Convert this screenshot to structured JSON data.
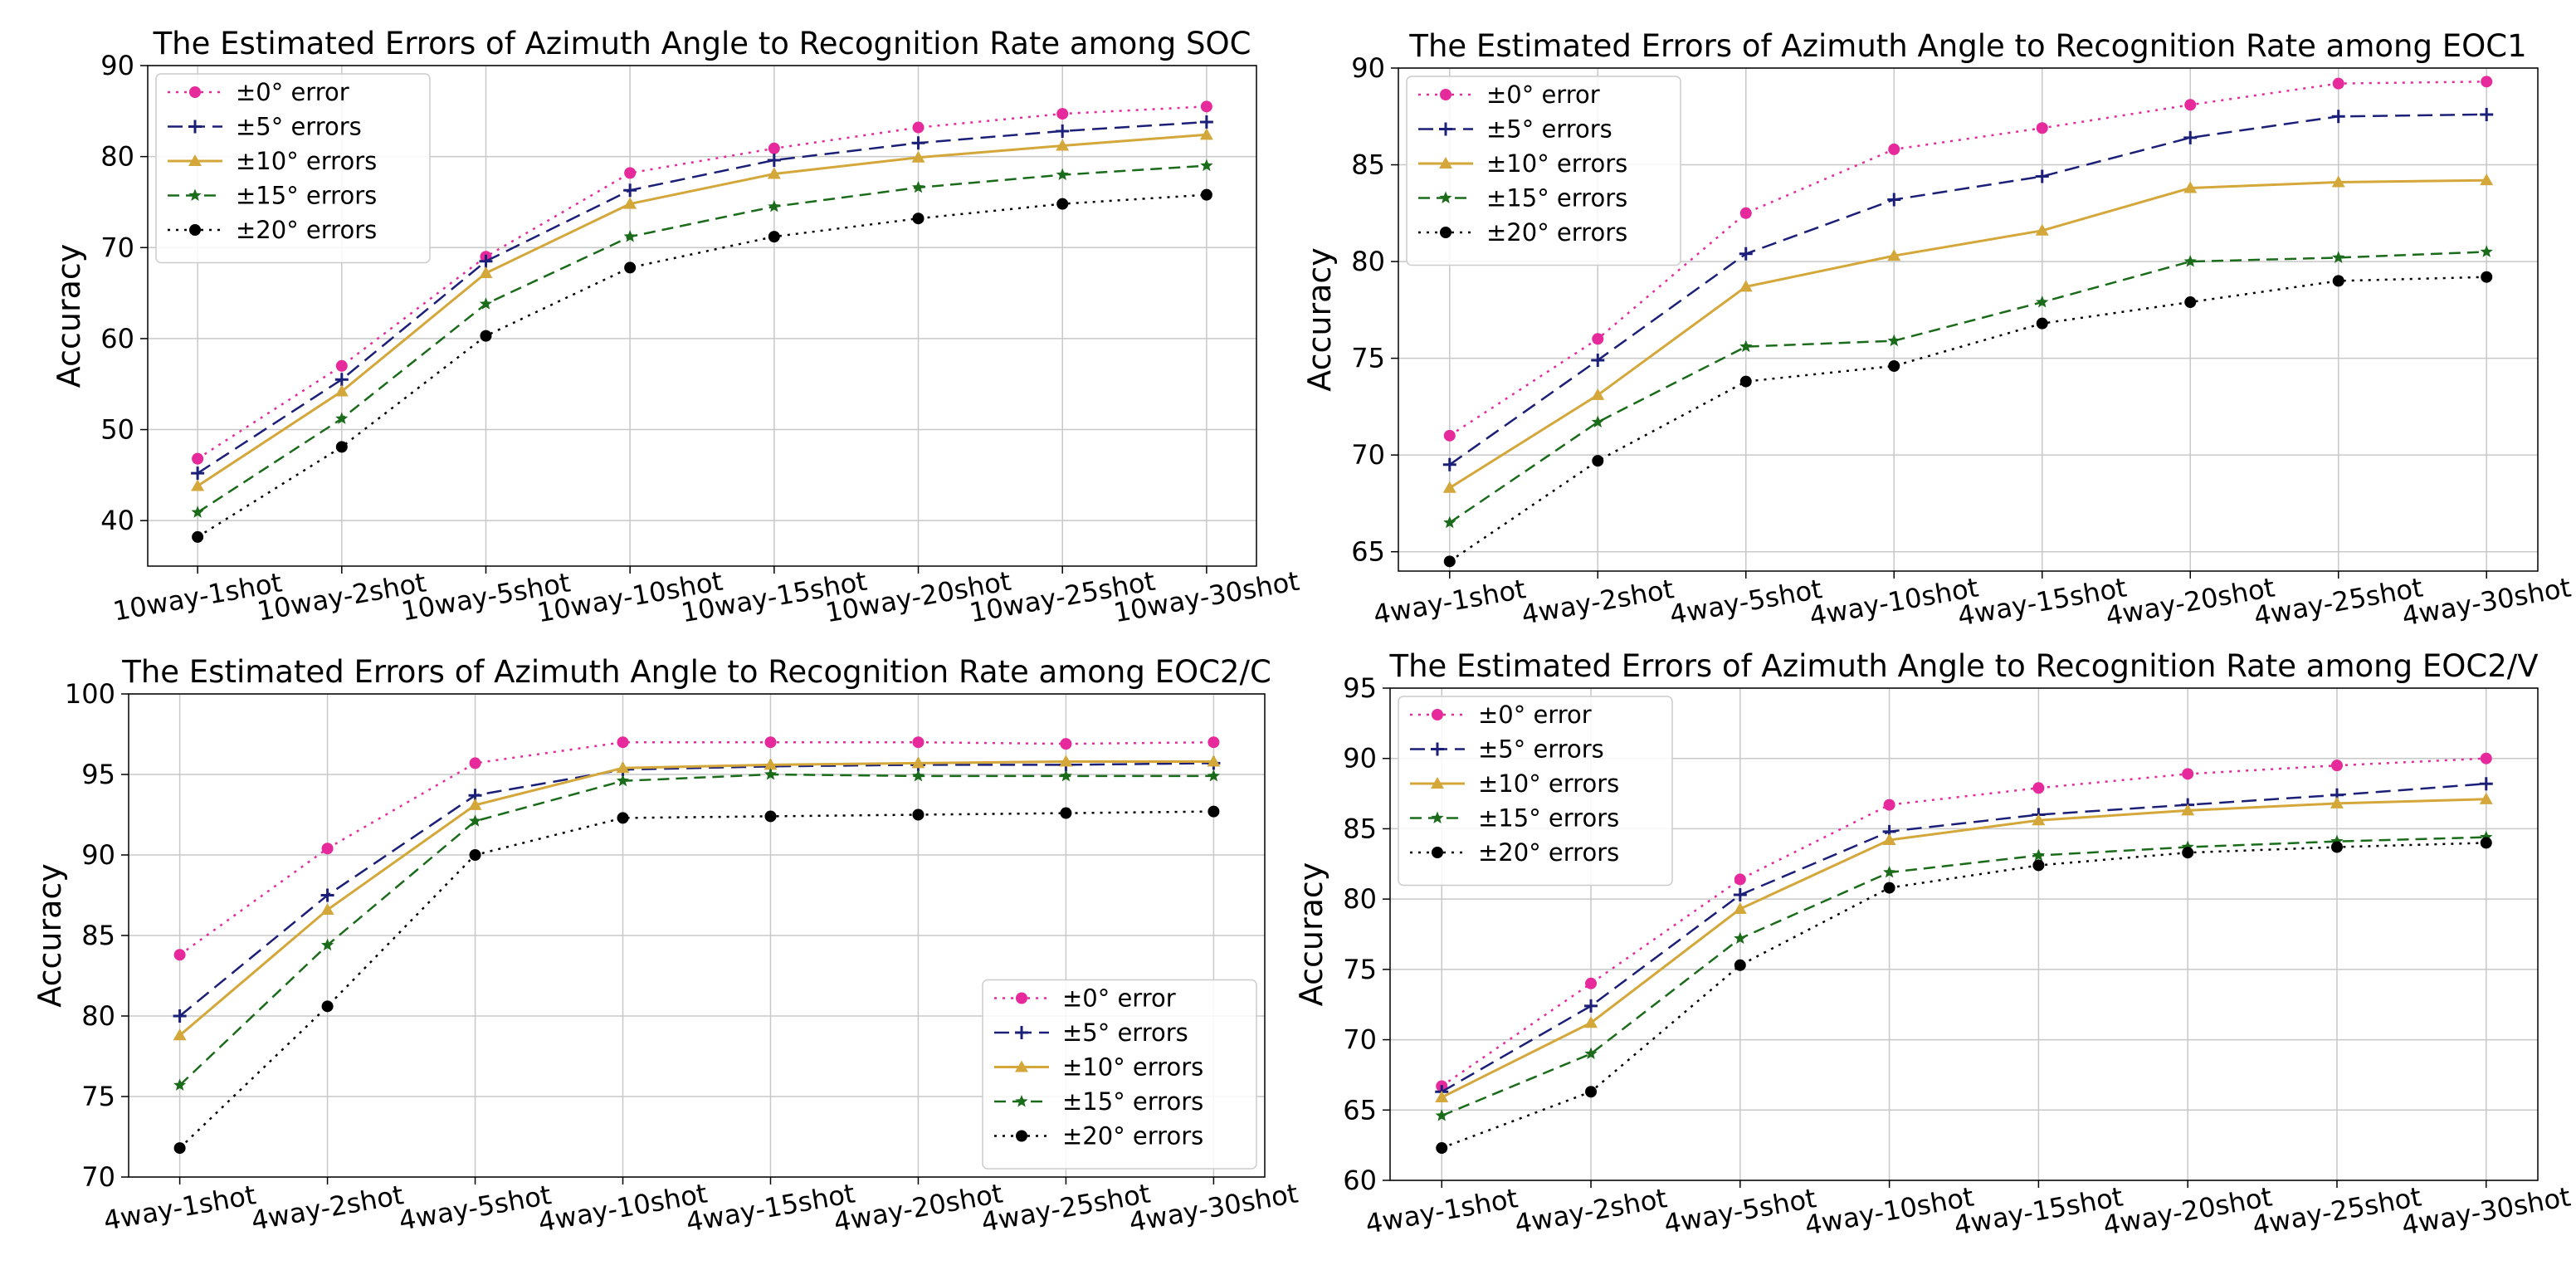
{
  "colors": {
    "s0": "#e62a9c",
    "s5": "#1b1f78",
    "s10": "#d4a73a",
    "s15": "#1a6b1a",
    "s20": "#000000",
    "grid": "#c8c8c8"
  },
  "chart_data": [
    {
      "type": "line",
      "title": "The Estimated Errors of Azimuth Angle to Recognition Rate among SOC",
      "xlabel": "",
      "ylabel": "Accuracy",
      "categories": [
        "10way-1shot",
        "10way-2shot",
        "10way-5shot",
        "10way-10shot",
        "10way-15shot",
        "10way-20shot",
        "10way-25shot",
        "10way-30shot"
      ],
      "ylim": [
        35,
        90
      ],
      "yticks": [
        "40",
        "50",
        "60",
        "70",
        "80",
        "90"
      ],
      "legend_position": "top-left",
      "grid": true,
      "series": [
        {
          "name": "±0° error",
          "values": [
            46.8,
            57.0,
            69.0,
            78.2,
            80.9,
            83.2,
            84.7,
            85.5
          ]
        },
        {
          "name": "±5° errors",
          "values": [
            45.2,
            55.5,
            68.5,
            76.3,
            79.6,
            81.5,
            82.8,
            83.8
          ]
        },
        {
          "name": "±10° errors",
          "values": [
            43.8,
            54.2,
            67.2,
            74.8,
            78.1,
            79.9,
            81.2,
            82.4
          ]
        },
        {
          "name": "±15° errors",
          "values": [
            40.9,
            51.2,
            63.8,
            71.2,
            74.5,
            76.6,
            78.0,
            79.0
          ]
        },
        {
          "name": "±20° errors",
          "values": [
            38.2,
            48.1,
            60.3,
            67.8,
            71.2,
            73.2,
            74.8,
            75.8
          ]
        }
      ]
    },
    {
      "type": "line",
      "title": "The Estimated Errors of Azimuth Angle to Recognition Rate among EOC1",
      "xlabel": "",
      "ylabel": "Accuracy",
      "categories": [
        "4way-1shot",
        "4way-2shot",
        "4way-5shot",
        "4way-10shot",
        "4way-15shot",
        "4way-20shot",
        "4way-25shot",
        "4way-30shot"
      ],
      "ylim": [
        64,
        90
      ],
      "yticks": [
        "65",
        "70",
        "75",
        "80",
        "85",
        "90"
      ],
      "legend_position": "top-left",
      "grid": true,
      "series": [
        {
          "name": "±0° error",
          "values": [
            71.0,
            76.0,
            82.5,
            85.8,
            86.9,
            88.1,
            89.2,
            89.3
          ]
        },
        {
          "name": "±5° errors",
          "values": [
            69.5,
            74.9,
            80.4,
            83.2,
            84.4,
            86.4,
            87.5,
            87.6
          ]
        },
        {
          "name": "±10° errors",
          "values": [
            68.3,
            73.1,
            78.7,
            80.3,
            81.6,
            83.8,
            84.1,
            84.2
          ]
        },
        {
          "name": "±15° errors",
          "values": [
            66.5,
            71.7,
            75.6,
            75.9,
            77.9,
            80.0,
            80.2,
            80.5
          ]
        },
        {
          "name": "±20° errors",
          "values": [
            64.5,
            69.7,
            73.8,
            74.6,
            76.8,
            77.9,
            79.0,
            79.2
          ]
        }
      ]
    },
    {
      "type": "line",
      "title": "The Estimated Errors of Azimuth Angle to Recognition Rate among EOC2/C",
      "xlabel": "",
      "ylabel": "Accuracy",
      "categories": [
        "4way-1shot",
        "4way-2shot",
        "4way-5shot",
        "4way-10shot",
        "4way-15shot",
        "4way-20shot",
        "4way-25shot",
        "4way-30shot"
      ],
      "ylim": [
        70,
        100
      ],
      "yticks": [
        "70",
        "75",
        "80",
        "85",
        "90",
        "95",
        "100"
      ],
      "legend_position": "lower-right",
      "grid": true,
      "series": [
        {
          "name": "±0° error",
          "values": [
            83.8,
            90.4,
            95.7,
            97.0,
            97.0,
            97.0,
            96.9,
            97.0
          ]
        },
        {
          "name": "±5° errors",
          "values": [
            80.0,
            87.5,
            93.7,
            95.3,
            95.5,
            95.6,
            95.6,
            95.7
          ]
        },
        {
          "name": "±10° errors",
          "values": [
            78.8,
            86.6,
            93.1,
            95.4,
            95.6,
            95.7,
            95.8,
            95.8
          ]
        },
        {
          "name": "±15° errors",
          "values": [
            75.7,
            84.4,
            92.1,
            94.6,
            95.0,
            94.9,
            94.9,
            94.9
          ]
        },
        {
          "name": "±20° errors",
          "values": [
            71.8,
            80.6,
            90.0,
            92.3,
            92.4,
            92.5,
            92.6,
            92.7
          ]
        }
      ]
    },
    {
      "type": "line",
      "title": "The Estimated Errors of Azimuth Angle to Recognition Rate among EOC2/V",
      "xlabel": "",
      "ylabel": "Accuracy",
      "categories": [
        "4way-1shot",
        "4way-2shot",
        "4way-5shot",
        "4way-10shot",
        "4way-15shot",
        "4way-20shot",
        "4way-25shot",
        "4way-30shot"
      ],
      "ylim": [
        60,
        95
      ],
      "yticks": [
        "60",
        "65",
        "70",
        "75",
        "80",
        "85",
        "90",
        "95"
      ],
      "legend_position": "top-left",
      "grid": true,
      "series": [
        {
          "name": "±0° error",
          "values": [
            66.7,
            74.0,
            81.4,
            86.7,
            87.9,
            88.9,
            89.5,
            90.0
          ]
        },
        {
          "name": "±5° errors",
          "values": [
            66.3,
            72.4,
            80.3,
            84.8,
            86.0,
            86.7,
            87.4,
            88.2
          ]
        },
        {
          "name": "±10° errors",
          "values": [
            65.9,
            71.2,
            79.3,
            84.2,
            85.6,
            86.3,
            86.8,
            87.1
          ]
        },
        {
          "name": "±15° errors",
          "values": [
            64.6,
            69.0,
            77.2,
            81.9,
            83.1,
            83.7,
            84.1,
            84.4
          ]
        },
        {
          "name": "±20° errors",
          "values": [
            62.3,
            66.3,
            75.3,
            80.8,
            82.4,
            83.3,
            83.7,
            84.0
          ]
        }
      ]
    }
  ]
}
